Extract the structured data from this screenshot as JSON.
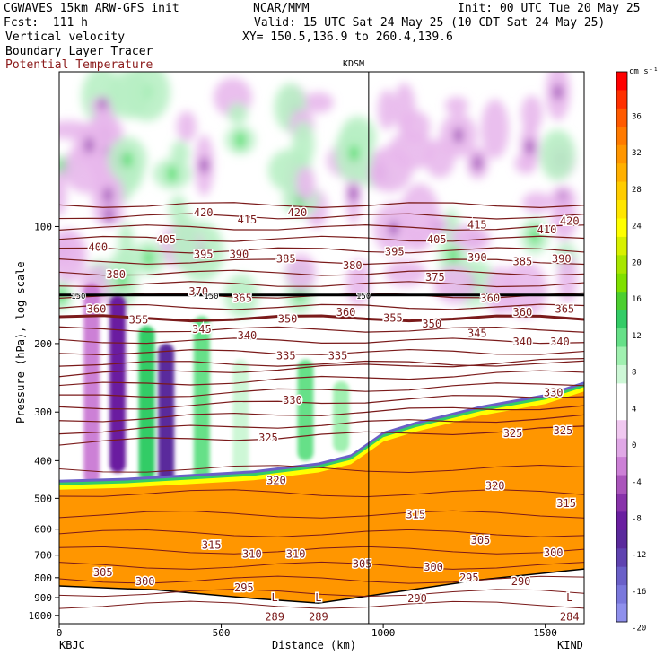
{
  "header": {
    "title_left": "CGWAVES 15km ARW-GFS init",
    "forecast": "Fcst:  111 h",
    "center": "NCAR/MMM",
    "init": "Init: 00 UTC Tue 20 May 25",
    "valid": "Valid: 15 UTC Sat 24 May 25 (10 CDT Sat 24 May 25)",
    "xy": "XY= 150.5,136.9 to 260.4,139.6",
    "field1": "Vertical velocity",
    "field2": "Boundary Layer Tracer",
    "field3": "Potential Temperature"
  },
  "chart_data": {
    "type": "heatmap",
    "station_marker": "KDSM",
    "station_marker_km": 955,
    "xlabel": "Distance (km)",
    "ylabel": "Pressure (hPa), log scale",
    "x_ticks": [
      0,
      500,
      1000,
      1500
    ],
    "x_endpoints": [
      "KBJC",
      "KIND"
    ],
    "xlim": [
      0,
      1620
    ],
    "y_ticks": [
      100,
      200,
      300,
      400,
      500,
      600,
      700,
      800,
      900,
      1000
    ],
    "ylim": [
      1050,
      40
    ],
    "y_log_scale": true,
    "colorbar": {
      "units": "cm s⁻¹",
      "tick_labels": [
        "36",
        "32",
        "28",
        "24",
        "20",
        "16",
        "12",
        "8",
        "4",
        "0",
        "-4",
        "-8",
        "-12",
        "-16",
        "-20"
      ],
      "colors": [
        "#ff0000",
        "#ff3000",
        "#ff5a00",
        "#ff7a00",
        "#ff9600",
        "#ffb000",
        "#ffcc00",
        "#ffe600",
        "#ffff00",
        "#d8f000",
        "#a8e600",
        "#7fe000",
        "#4ccf30",
        "#33cc66",
        "#66e088",
        "#a0f0b0",
        "#cdf7d6",
        "#ffffff",
        "#ffffff",
        "#f0c8f0",
        "#e0a8e6",
        "#cc80d6",
        "#aa55bb",
        "#8833aa",
        "#6a1fa0",
        "#5a2a9c",
        "#5f43b0",
        "#6a60c8",
        "#7a78dc",
        "#8f90ec"
      ]
    },
    "theta_contour_color": "#7a1a1a",
    "theta_contour_labels": [
      {
        "text": "420",
        "x": 445,
        "p": 92
      },
      {
        "text": "415",
        "x": 580,
        "p": 96
      },
      {
        "text": "420",
        "x": 735,
        "p": 92
      },
      {
        "text": "415",
        "x": 1290,
        "p": 99
      },
      {
        "text": "410",
        "x": 1505,
        "p": 102
      },
      {
        "text": "420",
        "x": 1575,
        "p": 97
      },
      {
        "text": "400",
        "x": 120,
        "p": 113
      },
      {
        "text": "405",
        "x": 330,
        "p": 108
      },
      {
        "text": "395",
        "x": 445,
        "p": 118
      },
      {
        "text": "390",
        "x": 555,
        "p": 118
      },
      {
        "text": "385",
        "x": 700,
        "p": 121
      },
      {
        "text": "395",
        "x": 1035,
        "p": 116
      },
      {
        "text": "405",
        "x": 1165,
        "p": 108
      },
      {
        "text": "390",
        "x": 1290,
        "p": 120
      },
      {
        "text": "385",
        "x": 1430,
        "p": 123
      },
      {
        "text": "390",
        "x": 1550,
        "p": 121
      },
      {
        "text": "380",
        "x": 175,
        "p": 133
      },
      {
        "text": "380",
        "x": 905,
        "p": 126
      },
      {
        "text": "375",
        "x": 1160,
        "p": 135
      },
      {
        "text": "370",
        "x": 430,
        "p": 147
      },
      {
        "text": "365",
        "x": 565,
        "p": 153
      },
      {
        "text": "360",
        "x": 1330,
        "p": 153
      },
      {
        "text": "360",
        "x": 115,
        "p": 163
      },
      {
        "text": "355",
        "x": 245,
        "p": 174
      },
      {
        "text": "350",
        "x": 705,
        "p": 173
      },
      {
        "text": "360",
        "x": 885,
        "p": 166
      },
      {
        "text": "355",
        "x": 1030,
        "p": 172
      },
      {
        "text": "350",
        "x": 1150,
        "p": 178
      },
      {
        "text": "360",
        "x": 1430,
        "p": 166
      },
      {
        "text": "365",
        "x": 1560,
        "p": 163
      },
      {
        "text": "345",
        "x": 440,
        "p": 184
      },
      {
        "text": "340",
        "x": 580,
        "p": 191
      },
      {
        "text": "345",
        "x": 1290,
        "p": 188
      },
      {
        "text": "340",
        "x": 1430,
        "p": 198
      },
      {
        "text": "340",
        "x": 1545,
        "p": 198
      },
      {
        "text": "335",
        "x": 700,
        "p": 215
      },
      {
        "text": "335",
        "x": 860,
        "p": 215
      },
      {
        "text": "330",
        "x": 720,
        "p": 280
      },
      {
        "text": "330",
        "x": 1525,
        "p": 267
      },
      {
        "text": "325",
        "x": 645,
        "p": 350
      },
      {
        "text": "325",
        "x": 1400,
        "p": 340
      },
      {
        "text": "325",
        "x": 1555,
        "p": 335
      },
      {
        "text": "320",
        "x": 670,
        "p": 450
      },
      {
        "text": "320",
        "x": 1345,
        "p": 465
      },
      {
        "text": "315",
        "x": 1100,
        "p": 550
      },
      {
        "text": "315",
        "x": 1565,
        "p": 515
      },
      {
        "text": "315",
        "x": 470,
        "p": 660
      },
      {
        "text": "310",
        "x": 595,
        "p": 695
      },
      {
        "text": "310",
        "x": 730,
        "p": 695
      },
      {
        "text": "305",
        "x": 1300,
        "p": 640
      },
      {
        "text": "300",
        "x": 1525,
        "p": 690
      },
      {
        "text": "305",
        "x": 135,
        "p": 775
      },
      {
        "text": "300",
        "x": 265,
        "p": 818
      },
      {
        "text": "295",
        "x": 570,
        "p": 850
      },
      {
        "text": "305",
        "x": 935,
        "p": 738
      },
      {
        "text": "300",
        "x": 1155,
        "p": 752
      },
      {
        "text": "295",
        "x": 1265,
        "p": 800
      },
      {
        "text": "290",
        "x": 1425,
        "p": 818
      },
      {
        "text": "290",
        "x": 1105,
        "p": 905
      },
      {
        "text": "L",
        "x": 665,
        "p": 900
      },
      {
        "text": "L",
        "x": 800,
        "p": 900
      },
      {
        "text": "289",
        "x": 665,
        "p": 1010
      },
      {
        "text": "289",
        "x": 800,
        "p": 1010
      },
      {
        "text": "L",
        "x": 1575,
        "p": 900
      },
      {
        "text": "284",
        "x": 1575,
        "p": 1010
      }
    ],
    "label_150_left": "150",
    "label_150_mid": "150",
    "label_150_mid2": "150"
  }
}
